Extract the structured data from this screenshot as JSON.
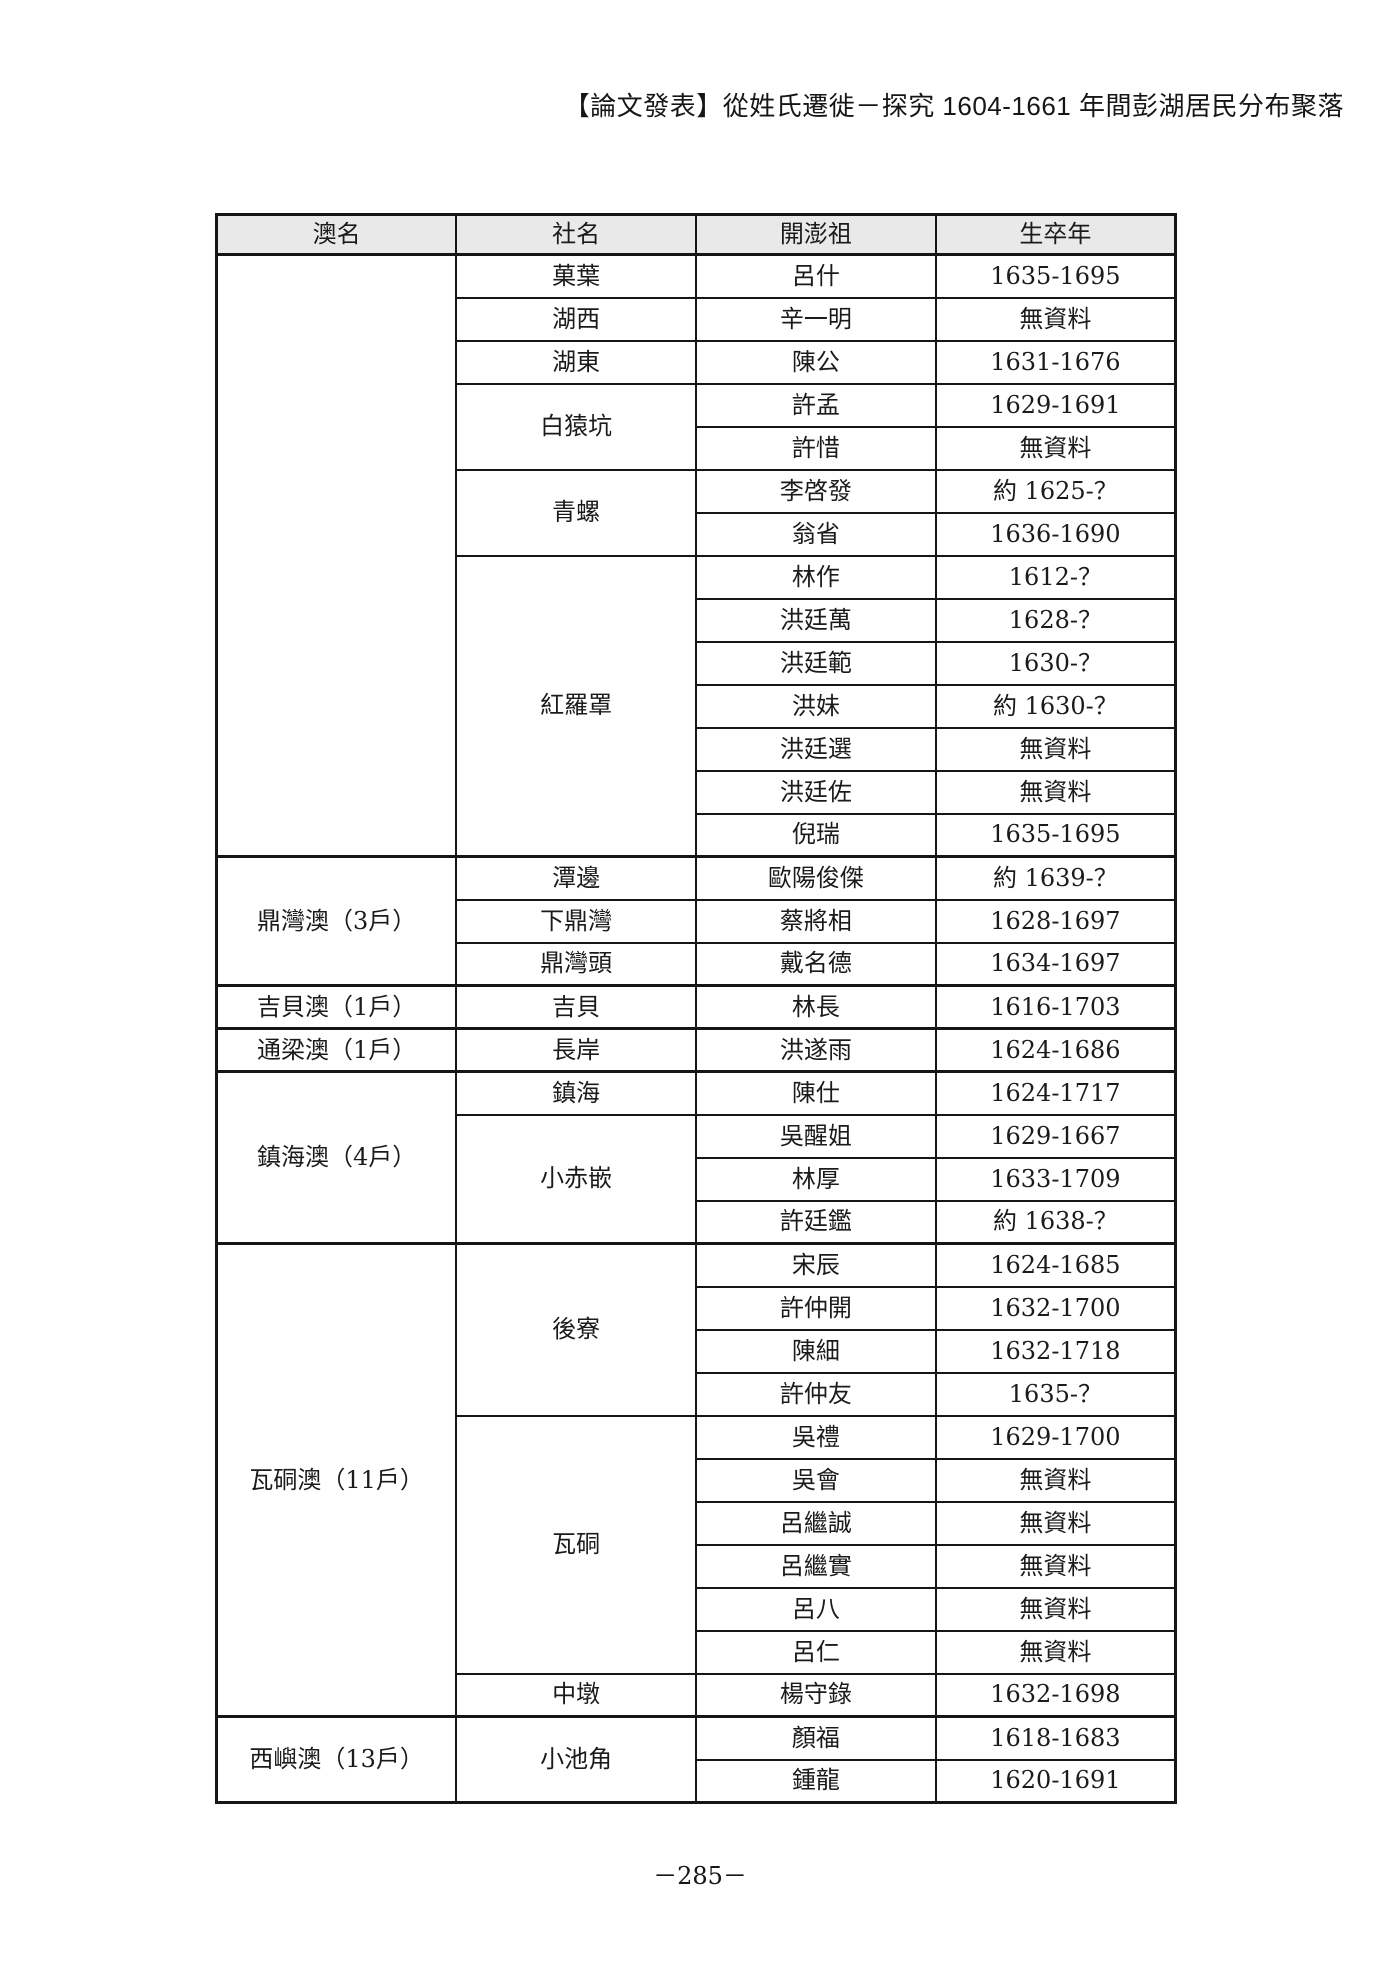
{
  "page": {
    "header": "【論文發表】從姓氏遷徙－探究 1604-1661 年間彭湖居民分布聚落",
    "page_number": "－285－"
  },
  "table": {
    "columns": [
      "澳名",
      "社名",
      "開澎祖",
      "生卒年"
    ],
    "no_data_label": "無資料",
    "blocks": [
      {
        "bay": "",
        "villages": [
          {
            "name": "菓葉",
            "people": [
              {
                "founder": "呂什",
                "years": "1635-1695"
              }
            ]
          },
          {
            "name": "湖西",
            "people": [
              {
                "founder": "辛一明",
                "years": "無資料"
              }
            ]
          },
          {
            "name": "湖東",
            "people": [
              {
                "founder": "陳公",
                "years": "1631-1676"
              }
            ]
          },
          {
            "name": "白猿坑",
            "people": [
              {
                "founder": "許孟",
                "years": "1629-1691"
              },
              {
                "founder": "許惜",
                "years": "無資料"
              }
            ]
          },
          {
            "name": "青螺",
            "people": [
              {
                "founder": "李啓發",
                "years": "約 1625-？"
              },
              {
                "founder": "翁省",
                "years": "1636-1690"
              }
            ]
          },
          {
            "name": "紅羅罩",
            "people": [
              {
                "founder": "林作",
                "years": "1612-？"
              },
              {
                "founder": "洪廷萬",
                "years": "1628-？"
              },
              {
                "founder": "洪廷範",
                "years": "1630-？"
              },
              {
                "founder": "洪妹",
                "years": "約 1630-？"
              },
              {
                "founder": "洪廷選",
                "years": "無資料"
              },
              {
                "founder": "洪廷佐",
                "years": "無資料"
              },
              {
                "founder": "倪瑞",
                "years": "1635-1695"
              }
            ]
          }
        ]
      },
      {
        "bay": "鼎灣澳（3戶）",
        "villages": [
          {
            "name": "潭邊",
            "people": [
              {
                "founder": "歐陽俊傑",
                "years": "約 1639-？"
              }
            ]
          },
          {
            "name": "下鼎灣",
            "people": [
              {
                "founder": "蔡將相",
                "years": "1628-1697"
              }
            ]
          },
          {
            "name": "鼎灣頭",
            "people": [
              {
                "founder": "戴名德",
                "years": "1634-1697"
              }
            ]
          }
        ]
      },
      {
        "bay": "吉貝澳（1戶）",
        "villages": [
          {
            "name": "吉貝",
            "people": [
              {
                "founder": "林長",
                "years": "1616-1703"
              }
            ]
          }
        ]
      },
      {
        "bay": "通梁澳（1戶）",
        "villages": [
          {
            "name": "長岸",
            "people": [
              {
                "founder": "洪遂雨",
                "years": "1624-1686"
              }
            ]
          }
        ]
      },
      {
        "bay": "鎮海澳（4戶）",
        "villages": [
          {
            "name": "鎮海",
            "people": [
              {
                "founder": "陳仕",
                "years": "1624-1717"
              }
            ]
          },
          {
            "name": "小赤嵌",
            "people": [
              {
                "founder": "吳醒姐",
                "years": "1629-1667"
              },
              {
                "founder": "林厚",
                "years": "1633-1709"
              },
              {
                "founder": "許廷鑑",
                "years": "約 1638-？"
              }
            ]
          }
        ]
      },
      {
        "bay": "瓦硐澳（11戶）",
        "villages": [
          {
            "name": "後寮",
            "people": [
              {
                "founder": "宋辰",
                "years": "1624-1685"
              },
              {
                "founder": "許仲開",
                "years": "1632-1700"
              },
              {
                "founder": "陳細",
                "years": "1632-1718"
              },
              {
                "founder": "許仲友",
                "years": "1635-？"
              }
            ]
          },
          {
            "name": "瓦硐",
            "people": [
              {
                "founder": "吳禮",
                "years": "1629-1700"
              },
              {
                "founder": "吳會",
                "years": "無資料"
              },
              {
                "founder": "呂繼誠",
                "years": "無資料"
              },
              {
                "founder": "呂繼實",
                "years": "無資料"
              },
              {
                "founder": "呂八",
                "years": "無資料"
              },
              {
                "founder": "呂仁",
                "years": "無資料"
              }
            ]
          },
          {
            "name": "中墩",
            "people": [
              {
                "founder": "楊守錄",
                "years": "1632-1698"
              }
            ]
          }
        ]
      },
      {
        "bay": "西嶼澳（13戶）",
        "villages": [
          {
            "name": "小池角",
            "people": [
              {
                "founder": "顏福",
                "years": "1618-1683"
              },
              {
                "founder": "鍾龍",
                "years": "1620-1691"
              }
            ]
          }
        ]
      }
    ]
  }
}
